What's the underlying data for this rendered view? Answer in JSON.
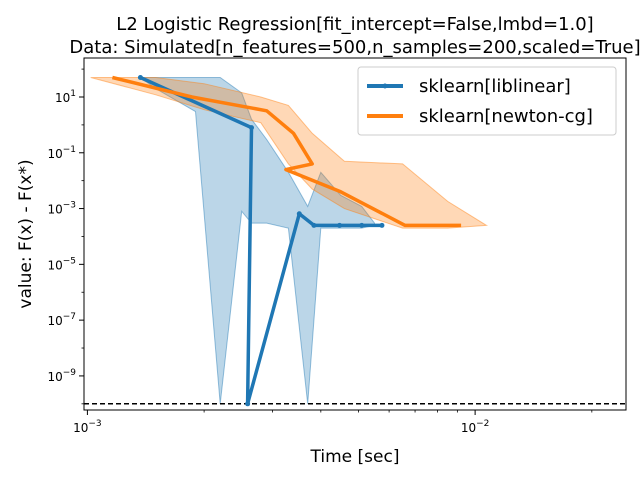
{
  "chart_data": {
    "type": "line",
    "title": "L2 Logistic Regression[fit_intercept=False,lmbd=1.0]",
    "subtitle": "Data: Simulated[n_features=500,n_samples=200,scaled=True]",
    "xlabel": "Time [sec]",
    "ylabel": "value: F(x) - F(x*)",
    "x_scale": "log",
    "y_scale": "log",
    "xlim": [
      0.00098,
      0.0245
    ],
    "ylim": [
      6e-11,
      250
    ],
    "x_ticks": [
      {
        "value": 0.001,
        "label": "10^-3"
      },
      {
        "value": 0.01,
        "label": "10^-2"
      }
    ],
    "y_ticks": [
      {
        "value": 10,
        "label": "10^1"
      },
      {
        "value": 0.1,
        "label": "10^-1"
      },
      {
        "value": 0.001,
        "label": "10^-3"
      },
      {
        "value": 1e-05,
        "label": "10^-5"
      },
      {
        "value": 1e-07,
        "label": "10^-7"
      },
      {
        "value": 1e-09,
        "label": "10^-9"
      }
    ],
    "reference_line": {
      "y": 1e-10,
      "style": "dashed",
      "color": "#000000"
    },
    "legend_position": "top-right",
    "grid": false,
    "series": [
      {
        "name": "sklearn[liblinear]",
        "color": "#1f77b4",
        "marker": "dot",
        "x": [
          0.00137,
          0.00265,
          0.00259,
          0.00352,
          0.00384,
          0.00447,
          0.0051,
          0.00575
        ],
        "y": [
          50,
          0.8,
          1e-10,
          0.00065,
          0.00025,
          0.00025,
          0.00025,
          0.00025
        ],
        "band_x": [
          0.00137,
          0.0015,
          0.0019,
          0.0022,
          0.0025,
          0.00265,
          0.0029,
          0.0033,
          0.0037,
          0.004,
          0.0045,
          0.0051,
          0.0055
        ],
        "band_upper": [
          50,
          50,
          50,
          50,
          14,
          1.6,
          0.3,
          0.02,
          0.0012,
          0.02,
          0.003,
          0.0012,
          0.0003
        ],
        "band_lower": [
          50,
          20,
          3,
          1e-10,
          0.0008,
          0.0003,
          0.0003,
          0.0002,
          1e-10,
          0.0002,
          0.0002,
          0.0002,
          0.00025
        ]
      },
      {
        "name": "sklearn[newton-cg]",
        "color": "#ff7f0e",
        "marker": "none",
        "x": [
          0.00116,
          0.00186,
          0.0029,
          0.0034,
          0.0038,
          0.00325,
          0.0045,
          0.0066,
          0.0092
        ],
        "y": [
          50,
          10,
          3.2,
          0.5,
          0.04,
          0.025,
          0.004,
          0.00025,
          0.00025
        ],
        "band_x": [
          0.00102,
          0.0015,
          0.002,
          0.0028,
          0.0033,
          0.0038,
          0.0046,
          0.0065,
          0.0085,
          0.0107
        ],
        "band_upper": [
          50,
          50,
          30,
          10,
          5,
          0.5,
          0.05,
          0.04,
          0.0018,
          0.00025
        ],
        "band_lower": [
          50,
          12,
          3.5,
          1.2,
          0.04,
          0.005,
          0.001,
          0.0002,
          0.0002,
          0.00025
        ]
      }
    ]
  }
}
